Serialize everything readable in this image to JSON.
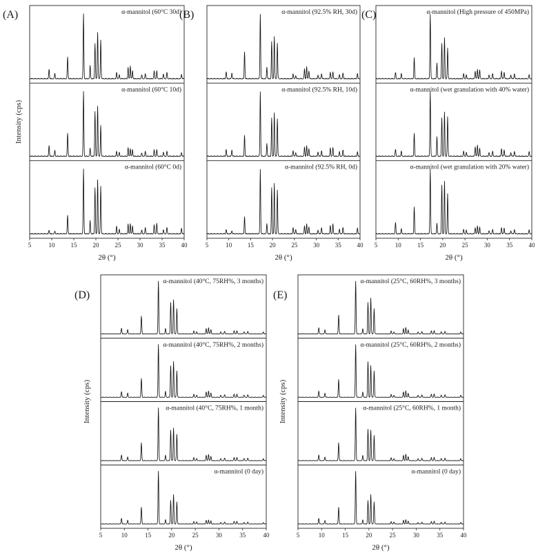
{
  "chart_data": [
    {
      "type": "line",
      "panel_label": "(A)",
      "xlabel": "2θ (°)",
      "ylabel": "Intensity (cps)",
      "xlim": [
        5,
        40
      ],
      "xticks": [
        5,
        10,
        15,
        20,
        25,
        30,
        35,
        40
      ],
      "peaks_2theta": [
        9.4,
        10.7,
        13.6,
        17.2,
        18.7,
        19.8,
        20.4,
        21.1,
        24.7,
        25.3,
        27.3,
        27.8,
        28.3,
        30.4,
        31.2,
        33.2,
        33.8,
        35.3,
        36.1,
        39.4
      ],
      "series": [
        {
          "name": "α-mannitol (60°C 30d)",
          "values": [
            0.15,
            0.08,
            0.34,
            1.0,
            0.2,
            0.55,
            0.72,
            0.6,
            0.1,
            0.06,
            0.17,
            0.2,
            0.12,
            0.06,
            0.08,
            0.12,
            0.12,
            0.07,
            0.1,
            0.07
          ]
        },
        {
          "name": "α-mannitol (60°C 10d)",
          "values": [
            0.17,
            0.09,
            0.36,
            1.0,
            0.12,
            0.7,
            0.78,
            0.48,
            0.08,
            0.06,
            0.13,
            0.12,
            0.1,
            0.05,
            0.08,
            0.1,
            0.1,
            0.06,
            0.08,
            0.06
          ]
        },
        {
          "name": "α-mannitol (60°C 0d)",
          "values": [
            0.06,
            0.04,
            0.29,
            1.0,
            0.2,
            0.72,
            0.84,
            0.74,
            0.12,
            0.07,
            0.15,
            0.16,
            0.12,
            0.06,
            0.1,
            0.14,
            0.16,
            0.06,
            0.1,
            0.09
          ]
        }
      ]
    },
    {
      "type": "line",
      "panel_label": "(B)",
      "xlabel": "2θ (°)",
      "ylabel": "",
      "xlim": [
        5,
        40
      ],
      "xticks": [
        5,
        10,
        15,
        20,
        25,
        30,
        35,
        40
      ],
      "peaks_2theta": [
        9.4,
        10.7,
        13.6,
        17.2,
        18.7,
        19.8,
        20.4,
        21.1,
        24.7,
        25.3,
        27.3,
        27.8,
        28.3,
        30.4,
        31.2,
        33.2,
        33.8,
        35.3,
        36.1,
        39.4
      ],
      "series": [
        {
          "name": "α-mannitol (92.5% RH, 30d)",
          "values": [
            0.11,
            0.09,
            0.42,
            1.0,
            0.18,
            0.58,
            0.65,
            0.55,
            0.08,
            0.05,
            0.15,
            0.18,
            0.12,
            0.06,
            0.08,
            0.1,
            0.1,
            0.06,
            0.09,
            0.08
          ]
        },
        {
          "name": "α-mannitol (92.5% RH, 10d)",
          "values": [
            0.11,
            0.1,
            0.33,
            1.0,
            0.2,
            0.6,
            0.67,
            0.58,
            0.09,
            0.06,
            0.14,
            0.16,
            0.12,
            0.07,
            0.09,
            0.13,
            0.13,
            0.07,
            0.1,
            0.07
          ]
        },
        {
          "name": "α-mannitol (92.5% RH, 0d)",
          "values": [
            0.07,
            0.05,
            0.27,
            1.0,
            0.16,
            0.72,
            0.78,
            0.68,
            0.1,
            0.07,
            0.12,
            0.15,
            0.11,
            0.06,
            0.1,
            0.13,
            0.15,
            0.07,
            0.1,
            0.09
          ]
        }
      ]
    },
    {
      "type": "line",
      "panel_label": "(C)",
      "xlabel": "2θ (°)",
      "ylabel": "",
      "xlim": [
        5,
        40
      ],
      "xticks": [
        5,
        10,
        15,
        20,
        25,
        30,
        35,
        40
      ],
      "peaks_2theta": [
        9.4,
        10.7,
        13.6,
        17.2,
        18.7,
        19.8,
        20.4,
        21.1,
        24.7,
        25.3,
        27.3,
        27.8,
        28.3,
        30.4,
        31.2,
        33.2,
        33.8,
        35.3,
        36.1,
        39.4
      ],
      "series": [
        {
          "name": "α-mannitol (High pressure of 450MPa)",
          "values": [
            0.1,
            0.08,
            0.33,
            1.0,
            0.24,
            0.55,
            0.63,
            0.47,
            0.08,
            0.06,
            0.12,
            0.14,
            0.13,
            0.06,
            0.08,
            0.12,
            0.1,
            0.06,
            0.08,
            0.06
          ]
        },
        {
          "name": "α-mannitol (wet granulation with 40% water)",
          "values": [
            0.11,
            0.08,
            0.36,
            1.0,
            0.3,
            0.6,
            0.68,
            0.61,
            0.08,
            0.06,
            0.15,
            0.17,
            0.12,
            0.06,
            0.08,
            0.12,
            0.1,
            0.06,
            0.08,
            0.07
          ]
        },
        {
          "name": "α-mannitol (wet granulation with 20% water)",
          "values": [
            0.18,
            0.08,
            0.42,
            1.0,
            0.16,
            0.76,
            0.81,
            0.62,
            0.07,
            0.06,
            0.1,
            0.12,
            0.1,
            0.05,
            0.07,
            0.1,
            0.09,
            0.05,
            0.07,
            0.06
          ]
        }
      ]
    },
    {
      "type": "line",
      "panel_label": "(D)",
      "xlabel": "2θ (°)",
      "ylabel": "Intensity (cps)",
      "xlim": [
        5,
        40
      ],
      "xticks": [
        5,
        10,
        15,
        20,
        25,
        30,
        35,
        40
      ],
      "peaks_2theta": [
        9.4,
        10.7,
        13.6,
        17.2,
        18.7,
        19.8,
        20.4,
        21.1,
        24.7,
        25.3,
        27.3,
        27.8,
        28.3,
        30.4,
        31.2,
        33.2,
        33.8,
        35.3,
        36.1,
        39.4
      ],
      "series": [
        {
          "name": "α-mannitol (40°C, 75RH%, 3 months)",
          "values": [
            0.11,
            0.08,
            0.34,
            1.0,
            0.1,
            0.6,
            0.65,
            0.48,
            0.06,
            0.04,
            0.1,
            0.12,
            0.08,
            0.04,
            0.05,
            0.06,
            0.06,
            0.04,
            0.05,
            0.04
          ]
        },
        {
          "name": "α-mannitol (40°C, 75RH%, 2 months)",
          "values": [
            0.11,
            0.08,
            0.36,
            1.0,
            0.11,
            0.6,
            0.68,
            0.5,
            0.06,
            0.04,
            0.1,
            0.12,
            0.08,
            0.04,
            0.05,
            0.06,
            0.06,
            0.04,
            0.05,
            0.04
          ]
        },
        {
          "name": "α-mannitol (40°C, 75RH%, 1 month)",
          "values": [
            0.11,
            0.07,
            0.34,
            1.0,
            0.1,
            0.58,
            0.62,
            0.5,
            0.06,
            0.04,
            0.1,
            0.12,
            0.08,
            0.04,
            0.05,
            0.06,
            0.06,
            0.04,
            0.05,
            0.04
          ]
        },
        {
          "name": "α-mannitol (0 day)",
          "values": [
            0.11,
            0.07,
            0.32,
            1.0,
            0.08,
            0.45,
            0.56,
            0.42,
            0.05,
            0.04,
            0.07,
            0.08,
            0.06,
            0.03,
            0.04,
            0.05,
            0.05,
            0.03,
            0.04,
            0.03
          ]
        }
      ]
    },
    {
      "type": "line",
      "panel_label": "(E)",
      "xlabel": "2θ (°)",
      "ylabel": "Intensity (cps)",
      "xlim": [
        5,
        40
      ],
      "xticks": [
        5,
        10,
        15,
        20,
        25,
        30,
        35,
        40
      ],
      "peaks_2theta": [
        9.4,
        10.7,
        13.6,
        17.2,
        18.7,
        19.8,
        20.4,
        21.1,
        24.7,
        25.3,
        27.3,
        27.8,
        28.3,
        30.4,
        31.2,
        33.2,
        33.8,
        35.3,
        36.1,
        39.4
      ],
      "series": [
        {
          "name": "α-mannitol (25°C, 60RH%, 3 months)",
          "values": [
            0.12,
            0.08,
            0.36,
            1.0,
            0.1,
            0.6,
            0.68,
            0.48,
            0.06,
            0.04,
            0.1,
            0.12,
            0.08,
            0.04,
            0.05,
            0.06,
            0.06,
            0.04,
            0.05,
            0.04
          ]
        },
        {
          "name": "α-mannitol (25°C, 60RH%, 2 months)",
          "values": [
            0.12,
            0.08,
            0.34,
            1.0,
            0.1,
            0.68,
            0.6,
            0.5,
            0.06,
            0.04,
            0.1,
            0.12,
            0.08,
            0.04,
            0.05,
            0.06,
            0.06,
            0.04,
            0.05,
            0.04
          ]
        },
        {
          "name": "α-mannitol (25°C, 60RH%, 1 month)",
          "values": [
            0.11,
            0.07,
            0.34,
            1.0,
            0.1,
            0.6,
            0.58,
            0.48,
            0.06,
            0.04,
            0.1,
            0.12,
            0.08,
            0.04,
            0.05,
            0.06,
            0.06,
            0.04,
            0.05,
            0.04
          ]
        },
        {
          "name": "α-mannitol (0 day)",
          "values": [
            0.11,
            0.07,
            0.32,
            1.0,
            0.08,
            0.45,
            0.56,
            0.42,
            0.05,
            0.04,
            0.07,
            0.08,
            0.06,
            0.03,
            0.04,
            0.05,
            0.05,
            0.03,
            0.04,
            0.03
          ]
        }
      ]
    }
  ]
}
